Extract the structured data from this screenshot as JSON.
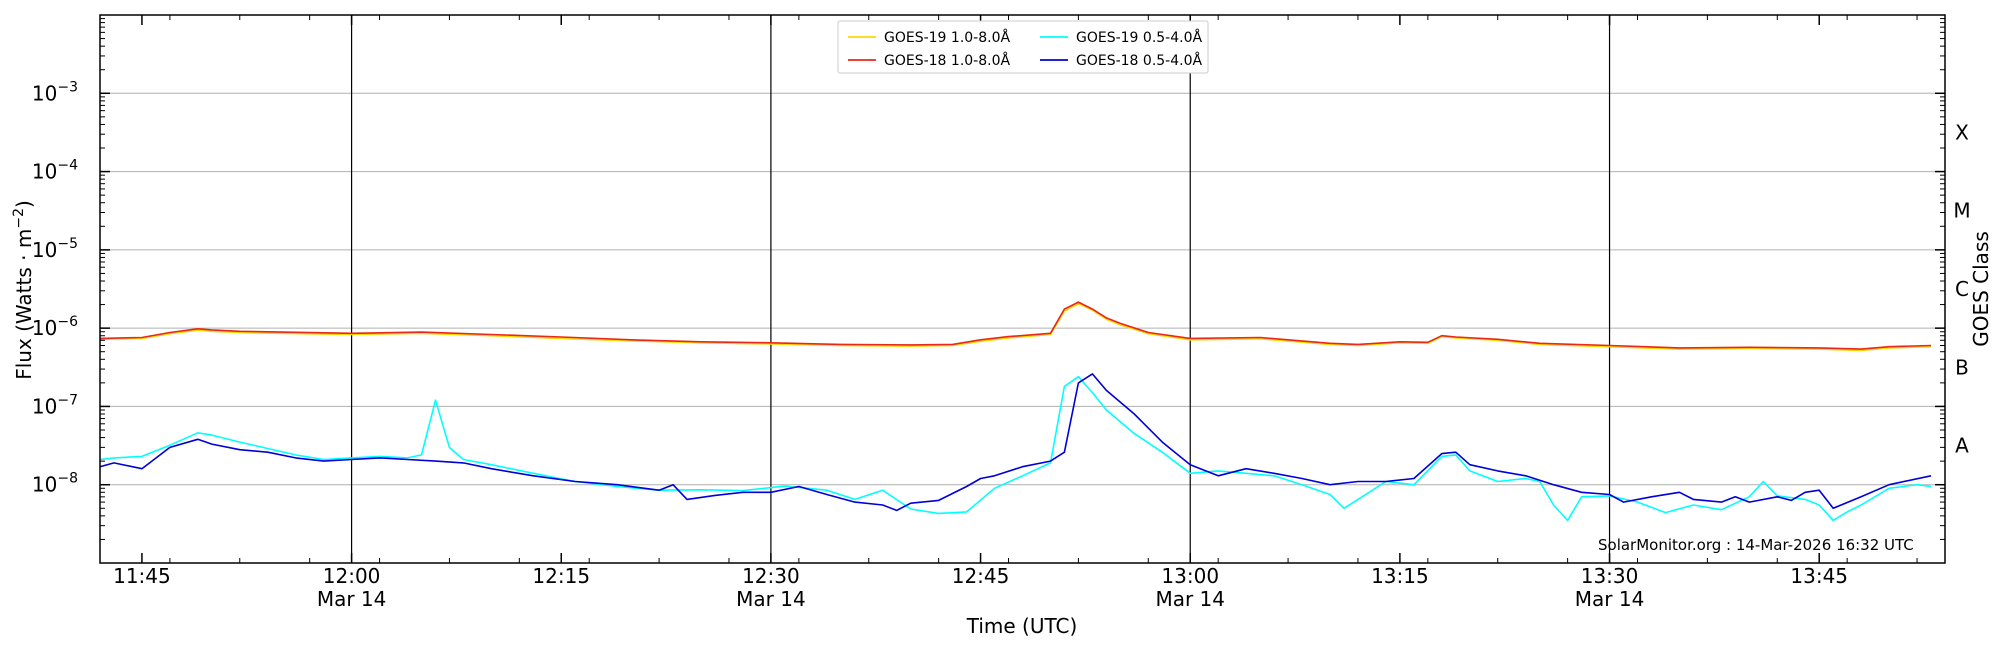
{
  "chart_data": {
    "type": "line",
    "xlabel": "Time (UTC)",
    "ylabel_main": "Flux (Watts · m",
    "ylabel_sup": "−2",
    "ylabel_end": ")",
    "right_label": "GOES Class",
    "y_scale": "log",
    "ylim": [
      1e-09,
      0.01
    ],
    "x_range_minutes_utc": [
      "11:42",
      "13:54"
    ],
    "y_ticks": [
      {
        "base": "10",
        "exp": "−3",
        "value": 0.001
      },
      {
        "base": "10",
        "exp": "−4",
        "value": 0.0001
      },
      {
        "base": "10",
        "exp": "−5",
        "value": 1e-05
      },
      {
        "base": "10",
        "exp": "−6",
        "value": 1e-06
      },
      {
        "base": "10",
        "exp": "−7",
        "value": 1e-07
      },
      {
        "base": "10",
        "exp": "−8",
        "value": 1e-08
      }
    ],
    "x_ticks": [
      {
        "time": "11:45",
        "label": "11:45",
        "date": ""
      },
      {
        "time": "12:00",
        "label": "12:00",
        "date": "Mar 14"
      },
      {
        "time": "12:15",
        "label": "12:15",
        "date": ""
      },
      {
        "time": "12:30",
        "label": "12:30",
        "date": "Mar 14"
      },
      {
        "time": "12:45",
        "label": "12:45",
        "date": ""
      },
      {
        "time": "13:00",
        "label": "13:00",
        "date": "Mar 14"
      },
      {
        "time": "13:15",
        "label": "13:15",
        "date": ""
      },
      {
        "time": "13:30",
        "label": "13:30",
        "date": "Mar 14"
      },
      {
        "time": "13:45",
        "label": "13:45",
        "date": ""
      }
    ],
    "day_lines": [
      "12:00",
      "12:30",
      "13:00",
      "13:30"
    ],
    "goes_classes": [
      {
        "label": "A",
        "value": 1e-08
      },
      {
        "label": "B",
        "value": 1e-07
      },
      {
        "label": "C",
        "value": 1e-06
      },
      {
        "label": "M",
        "value": 1e-05
      },
      {
        "label": "X",
        "value": 0.0001
      }
    ],
    "legend_placement": "top-center",
    "grid": "horizontal",
    "watermark": "SolarMonitor.org : 14-Mar-2026 16:32 UTC",
    "series": [
      {
        "name": "GOES-19 1.0-8.0Å",
        "color": "#ffd700",
        "x": [
          "11:42",
          "11:45",
          "11:47",
          "11:49",
          "11:50",
          "11:52",
          "11:55",
          "12:00",
          "12:05",
          "12:10",
          "12:15",
          "12:20",
          "12:25",
          "12:30",
          "12:35",
          "12:40",
          "12:43",
          "12:45",
          "12:47",
          "12:50",
          "12:51",
          "12:52",
          "12:53",
          "12:54",
          "12:55",
          "12:57",
          "13:00",
          "13:05",
          "13:10",
          "13:12",
          "13:15",
          "13:17",
          "13:18",
          "13:19",
          "13:22",
          "13:25",
          "13:30",
          "13:35",
          "13:40",
          "13:45",
          "13:48",
          "13:50",
          "13:53"
        ],
        "values": [
          7.2e-07,
          7.4e-07,
          8.5e-07,
          9.4e-07,
          9.1e-07,
          8.8e-07,
          8.6e-07,
          8.3e-07,
          8.6e-07,
          8e-07,
          7.4e-07,
          6.9e-07,
          6.5e-07,
          6.3e-07,
          6e-07,
          5.9e-07,
          6e-07,
          6.8e-07,
          7.5e-07,
          8.3e-07,
          1.65e-06,
          2.05e-06,
          1.7e-06,
          1.3e-06,
          1.1e-06,
          8.5e-07,
          7.1e-07,
          7.3e-07,
          6.2e-07,
          6e-07,
          6.5e-07,
          6.4e-07,
          7.8e-07,
          7.5e-07,
          7e-07,
          6.2e-07,
          5.8e-07,
          5.4e-07,
          5.5e-07,
          5.4e-07,
          5.2e-07,
          5.6e-07,
          5.8e-07
        ]
      },
      {
        "name": "GOES-18 1.0-8.0Å",
        "color": "#e8281a",
        "x": [
          "11:42",
          "11:45",
          "11:47",
          "11:49",
          "11:50",
          "11:52",
          "11:55",
          "12:00",
          "12:05",
          "12:10",
          "12:15",
          "12:20",
          "12:25",
          "12:30",
          "12:35",
          "12:40",
          "12:43",
          "12:45",
          "12:47",
          "12:50",
          "12:51",
          "12:52",
          "12:53",
          "12:54",
          "12:55",
          "12:57",
          "13:00",
          "13:05",
          "13:10",
          "13:12",
          "13:15",
          "13:17",
          "13:18",
          "13:19",
          "13:22",
          "13:25",
          "13:30",
          "13:35",
          "13:40",
          "13:45",
          "13:48",
          "13:50",
          "13:53"
        ],
        "values": [
          7.4e-07,
          7.6e-07,
          8.8e-07,
          9.8e-07,
          9.5e-07,
          9.1e-07,
          8.9e-07,
          8.6e-07,
          8.9e-07,
          8.3e-07,
          7.7e-07,
          7.1e-07,
          6.7e-07,
          6.5e-07,
          6.2e-07,
          6.1e-07,
          6.2e-07,
          7.1e-07,
          7.8e-07,
          8.6e-07,
          1.75e-06,
          2.15e-06,
          1.75e-06,
          1.35e-06,
          1.15e-06,
          8.8e-07,
          7.4e-07,
          7.6e-07,
          6.4e-07,
          6.2e-07,
          6.7e-07,
          6.6e-07,
          8e-07,
          7.7e-07,
          7.2e-07,
          6.4e-07,
          6e-07,
          5.6e-07,
          5.7e-07,
          5.6e-07,
          5.4e-07,
          5.8e-07,
          6e-07
        ]
      },
      {
        "name": "GOES-19 0.5-4.0Å",
        "color": "#00ffff",
        "x": [
          "11:42",
          "11:43",
          "11:45",
          "11:47",
          "11:49",
          "11:50",
          "11:52",
          "11:54",
          "11:56",
          "11:58",
          "12:00",
          "12:02",
          "12:04",
          "12:05",
          "12:06",
          "12:07",
          "12:08",
          "12:10",
          "12:13",
          "12:16",
          "12:19",
          "12:22",
          "12:25",
          "12:28",
          "12:31",
          "12:34",
          "12:36",
          "12:38",
          "12:40",
          "12:42",
          "12:44",
          "12:46",
          "12:48",
          "12:50",
          "12:51",
          "12:52",
          "12:53",
          "12:54",
          "12:56",
          "12:58",
          "13:00",
          "13:02",
          "13:04",
          "13:06",
          "13:08",
          "13:10",
          "13:11",
          "13:12",
          "13:14",
          "13:16",
          "13:18",
          "13:19",
          "13:20",
          "13:22",
          "13:24",
          "13:25",
          "13:26",
          "13:27",
          "13:28",
          "13:30",
          "13:32",
          "13:34",
          "13:36",
          "13:38",
          "13:40",
          "13:41",
          "13:42",
          "13:44",
          "13:45",
          "13:46",
          "13:47",
          "13:48",
          "13:50",
          "13:52",
          "13:53"
        ],
        "values": [
          2.1e-08,
          2.2e-08,
          2.3e-08,
          3.2e-08,
          4.6e-08,
          4.3e-08,
          3.5e-08,
          2.9e-08,
          2.4e-08,
          2.1e-08,
          2.2e-08,
          2.3e-08,
          2.2e-08,
          2.4e-08,
          1.2e-07,
          3e-08,
          2.1e-08,
          1.8e-08,
          1.4e-08,
          1.1e-08,
          9.5e-09,
          8.5e-09,
          8.6e-09,
          8.4e-09,
          9.6e-09,
          8.5e-09,
          6.5e-09,
          8.5e-09,
          4.9e-09,
          4.3e-09,
          4.5e-09,
          9e-09,
          1.3e-08,
          1.9e-08,
          1.8e-07,
          2.4e-07,
          1.5e-07,
          9e-08,
          4.5e-08,
          2.6e-08,
          1.4e-08,
          1.5e-08,
          1.4e-08,
          1.3e-08,
          1e-08,
          7.5e-09,
          5e-09,
          6.5e-09,
          1.1e-08,
          1e-08,
          2.3e-08,
          2.4e-08,
          1.5e-08,
          1.1e-08,
          1.2e-08,
          1.1e-08,
          5.5e-09,
          3.5e-09,
          7e-09,
          7.2e-09,
          6e-09,
          4.4e-09,
          5.5e-09,
          4.8e-09,
          7e-09,
          1.1e-08,
          7.2e-09,
          6.5e-09,
          5.5e-09,
          3.5e-09,
          4.5e-09,
          5.5e-09,
          9e-09,
          1e-08,
          9.5e-09
        ]
      },
      {
        "name": "GOES-18 0.5-4.0Å",
        "color": "#0000d8",
        "x": [
          "11:42",
          "11:43",
          "11:45",
          "11:47",
          "11:49",
          "11:50",
          "11:52",
          "11:54",
          "11:56",
          "11:58",
          "12:00",
          "12:02",
          "12:04",
          "12:06",
          "12:08",
          "12:10",
          "12:13",
          "12:16",
          "12:19",
          "12:22",
          "12:23",
          "12:24",
          "12:26",
          "12:28",
          "12:30",
          "12:32",
          "12:34",
          "12:36",
          "12:38",
          "12:39",
          "12:40",
          "12:42",
          "12:44",
          "12:45",
          "12:46",
          "12:48",
          "12:50",
          "12:51",
          "12:52",
          "12:53",
          "12:54",
          "12:56",
          "12:58",
          "13:00",
          "13:02",
          "13:04",
          "13:06",
          "13:08",
          "13:10",
          "13:12",
          "13:14",
          "13:16",
          "13:18",
          "13:19",
          "13:20",
          "13:22",
          "13:24",
          "13:26",
          "13:28",
          "13:30",
          "13:31",
          "13:33",
          "13:35",
          "13:36",
          "13:38",
          "13:39",
          "13:40",
          "13:42",
          "13:43",
          "13:44",
          "13:45",
          "13:46",
          "13:48",
          "13:50",
          "13:53"
        ],
        "values": [
          1.7e-08,
          1.9e-08,
          1.6e-08,
          3e-08,
          3.8e-08,
          3.3e-08,
          2.8e-08,
          2.6e-08,
          2.2e-08,
          2e-08,
          2.1e-08,
          2.2e-08,
          2.1e-08,
          2e-08,
          1.9e-08,
          1.6e-08,
          1.3e-08,
          1.1e-08,
          1e-08,
          8.5e-09,
          1e-08,
          6.5e-09,
          7.3e-09,
          8e-09,
          8e-09,
          9.5e-09,
          7.5e-09,
          6e-09,
          5.5e-09,
          4.7e-09,
          5.8e-09,
          6.3e-09,
          9.5e-09,
          1.2e-08,
          1.3e-08,
          1.7e-08,
          2e-08,
          2.6e-08,
          2e-07,
          2.6e-07,
          1.6e-07,
          8e-08,
          3.5e-08,
          1.8e-08,
          1.3e-08,
          1.6e-08,
          1.4e-08,
          1.2e-08,
          1e-08,
          1.1e-08,
          1.1e-08,
          1.2e-08,
          2.5e-08,
          2.6e-08,
          1.8e-08,
          1.5e-08,
          1.3e-08,
          1e-08,
          8e-09,
          7.5e-09,
          6e-09,
          7e-09,
          8e-09,
          6.5e-09,
          6e-09,
          7e-09,
          6e-09,
          7e-09,
          6.3e-09,
          8e-09,
          8.5e-09,
          5e-09,
          7e-09,
          1e-08,
          1.3e-08
        ]
      }
    ]
  }
}
